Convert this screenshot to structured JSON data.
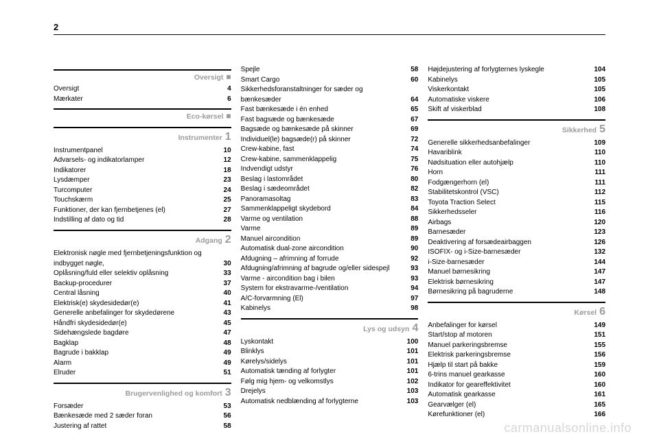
{
  "page_number": "2",
  "watermark": "carmanualsonline.info",
  "colors": {
    "text": "#000000",
    "section_grey": "#9a9a9a",
    "watermark": "#d6d6d6",
    "rule": "#000000",
    "bg": "#ffffff"
  },
  "col1": {
    "sections": [
      {
        "title": "Oversigt",
        "marker": "■",
        "rows": [
          {
            "label": "Oversigt",
            "pg": "4"
          },
          {
            "label": "Mærkater",
            "pg": "6"
          }
        ]
      },
      {
        "title": "Eco-kørsel",
        "marker": "■",
        "rows": []
      },
      {
        "title": "Instrumenter",
        "marker": "1",
        "rows": [
          {
            "label": "Instrumentpanel",
            "pg": "10"
          },
          {
            "label": "Advarsels- og indikatorlamper",
            "pg": "12"
          },
          {
            "label": "Indikatorer",
            "pg": "18"
          },
          {
            "label": "Lysdæmper",
            "pg": "23"
          },
          {
            "label": "Turcomputer",
            "pg": "24"
          },
          {
            "label": "Touchskærm",
            "pg": "25"
          },
          {
            "label": "Funktioner, der kan fjernbetjenes (el)",
            "pg": "27"
          },
          {
            "label": "Indstilling af dato og tid",
            "pg": "28"
          }
        ]
      },
      {
        "title": "Adgang",
        "marker": "2",
        "rows": [
          {
            "label": "Elektronisk nøgle med fjernbetjeningsfunktion og indbygget nøgle,",
            "pg": "30"
          },
          {
            "label": "Oplåsning/fuld eller selektiv oplåsning",
            "pg": "33"
          },
          {
            "label": "Backup-procedurer",
            "pg": "37"
          },
          {
            "label": "Central låsning",
            "pg": "40"
          },
          {
            "label": "Elektrisk(e) skydesidedør(e)",
            "pg": "41"
          },
          {
            "label": "Generelle anbefalinger for skydedørene",
            "pg": "43"
          },
          {
            "label": "Håndfri skydesidedør(e)",
            "pg": "45"
          },
          {
            "label": "Sidehængslede bagdøre",
            "pg": "47"
          },
          {
            "label": "Bagklap",
            "pg": "48"
          },
          {
            "label": "Bagrude i bakklap",
            "pg": "49"
          },
          {
            "label": "Alarm",
            "pg": "49"
          },
          {
            "label": "Elruder",
            "pg": "51"
          }
        ]
      },
      {
        "title": "Brugervenlighed og komfort",
        "marker": "3",
        "rows": [
          {
            "label": "Forsæder",
            "pg": "53"
          },
          {
            "label": "Bænkesæde med 2 sæder foran",
            "pg": "56"
          },
          {
            "label": "Justering af rattet",
            "pg": "58"
          }
        ]
      }
    ]
  },
  "col2": {
    "top_rows": [
      {
        "label": "Spejle",
        "pg": "58"
      },
      {
        "label": "Smart Cargo",
        "pg": "60"
      },
      {
        "label": "Sikkerhedsforanstaltninger for sæder og bænkesæder",
        "pg": "64"
      },
      {
        "label": "Fast bænkesæde i én enhed",
        "pg": "65"
      },
      {
        "label": "Fast bagsæde og bænkesæde",
        "pg": "67"
      },
      {
        "label": "Bagsæde og bænkesæde på skinner",
        "pg": "69"
      },
      {
        "label": "Individuel(le) bagsæde(r) på skinner",
        "pg": "72"
      },
      {
        "label": "Crew-kabine, fast",
        "pg": "74"
      },
      {
        "label": "Crew-kabine, sammenklappelig",
        "pg": "75"
      },
      {
        "label": "Indvendigt udstyr",
        "pg": "76"
      },
      {
        "label": "Beslag i lastområdet",
        "pg": "80"
      },
      {
        "label": "Beslag i sædeområdet",
        "pg": "82"
      },
      {
        "label": "Panoramasoltag",
        "pg": "83"
      },
      {
        "label": "Sammenklappeligt skydebord",
        "pg": "84"
      },
      {
        "label": "Varme og ventilation",
        "pg": "88"
      },
      {
        "label": "Varme",
        "pg": "89"
      },
      {
        "label": "Manuel aircondition",
        "pg": "89"
      },
      {
        "label": "Automatisk dual-zone aircondition",
        "pg": "90"
      },
      {
        "label": "Afdugning – afrimning af forrude",
        "pg": "92"
      },
      {
        "label": "Afdugning/afrimning af bagrude og/eller sidespejl",
        "pg": "93"
      },
      {
        "label": "Varme - aircondition bag i bilen",
        "pg": "93"
      },
      {
        "label": "System for ekstravarme-/ventilation",
        "pg": "94"
      },
      {
        "label": "A/C-forvarmning (El)",
        "pg": "97"
      },
      {
        "label": "Kabinelys",
        "pg": "98"
      }
    ],
    "sections": [
      {
        "title": "Lys og udsyn",
        "marker": "4",
        "rows": [
          {
            "label": "Lyskontakt",
            "pg": "100"
          },
          {
            "label": "Blinklys",
            "pg": "101"
          },
          {
            "label": "Kørelys/sidelys",
            "pg": "101"
          },
          {
            "label": "Automatisk tænding af forlygter",
            "pg": "101"
          },
          {
            "label": "Følg mig hjem- og velkomstlys",
            "pg": "102"
          },
          {
            "label": "Drejelys",
            "pg": "103"
          },
          {
            "label": "Automatisk nedblænding af forlygterne",
            "pg": "103"
          }
        ]
      }
    ]
  },
  "col3": {
    "top_rows": [
      {
        "label": "Højdejustering af forlygternes lyskegle",
        "pg": "104"
      },
      {
        "label": "Kabinelys",
        "pg": "105"
      },
      {
        "label": "Viskerkontakt",
        "pg": "105"
      },
      {
        "label": "Automatiske viskere",
        "pg": "106"
      },
      {
        "label": "Skift af viskerblad",
        "pg": "108"
      }
    ],
    "sections": [
      {
        "title": "Sikkerhed",
        "marker": "5",
        "rows": [
          {
            "label": "Generelle sikkerhedsanbefalinger",
            "pg": "109"
          },
          {
            "label": "Havariblink",
            "pg": "110"
          },
          {
            "label": "Nødsituation eller autohjælp",
            "pg": "110"
          },
          {
            "label": "Horn",
            "pg": "111"
          },
          {
            "label": "Fodgængerhorn (el)",
            "pg": "111"
          },
          {
            "label": "Stabilitetskontrol (VSC)",
            "pg": "112"
          },
          {
            "label": "Toyota Traction Select",
            "pg": "115"
          },
          {
            "label": "Sikkerhedsseler",
            "pg": "116"
          },
          {
            "label": "Airbags",
            "pg": "120"
          },
          {
            "label": "Barnesæder",
            "pg": "123"
          },
          {
            "label": "Deaktivering af forsædeairbaggen",
            "pg": "126"
          },
          {
            "label": "ISOFIX- og i-Size-barnesæder",
            "pg": "132"
          },
          {
            "label": "i-Size-barnesæder",
            "pg": "144"
          },
          {
            "label": "Manuel børnesikring",
            "pg": "147"
          },
          {
            "label": "Elektrisk børnesikring",
            "pg": "147"
          },
          {
            "label": "Børnesikring på bagruderne",
            "pg": "148"
          }
        ]
      },
      {
        "title": "Kørsel",
        "marker": "6",
        "rows": [
          {
            "label": "Anbefalinger for kørsel",
            "pg": "149"
          },
          {
            "label": "Start/stop af motoren",
            "pg": "151"
          },
          {
            "label": "Manuel parkeringsbremse",
            "pg": "155"
          },
          {
            "label": "Elektrisk parkeringsbremse",
            "pg": "156"
          },
          {
            "label": "Hjælp til start på bakke",
            "pg": "159"
          },
          {
            "label": "6-trins manuel gearkasse",
            "pg": "160"
          },
          {
            "label": "Indikator for geareffektivitet",
            "pg": "160"
          },
          {
            "label": "Automatisk gearkasse",
            "pg": "161"
          },
          {
            "label": "Gearvælger (el)",
            "pg": "165"
          },
          {
            "label": "Kørefunktioner (el)",
            "pg": "166"
          }
        ]
      }
    ]
  }
}
